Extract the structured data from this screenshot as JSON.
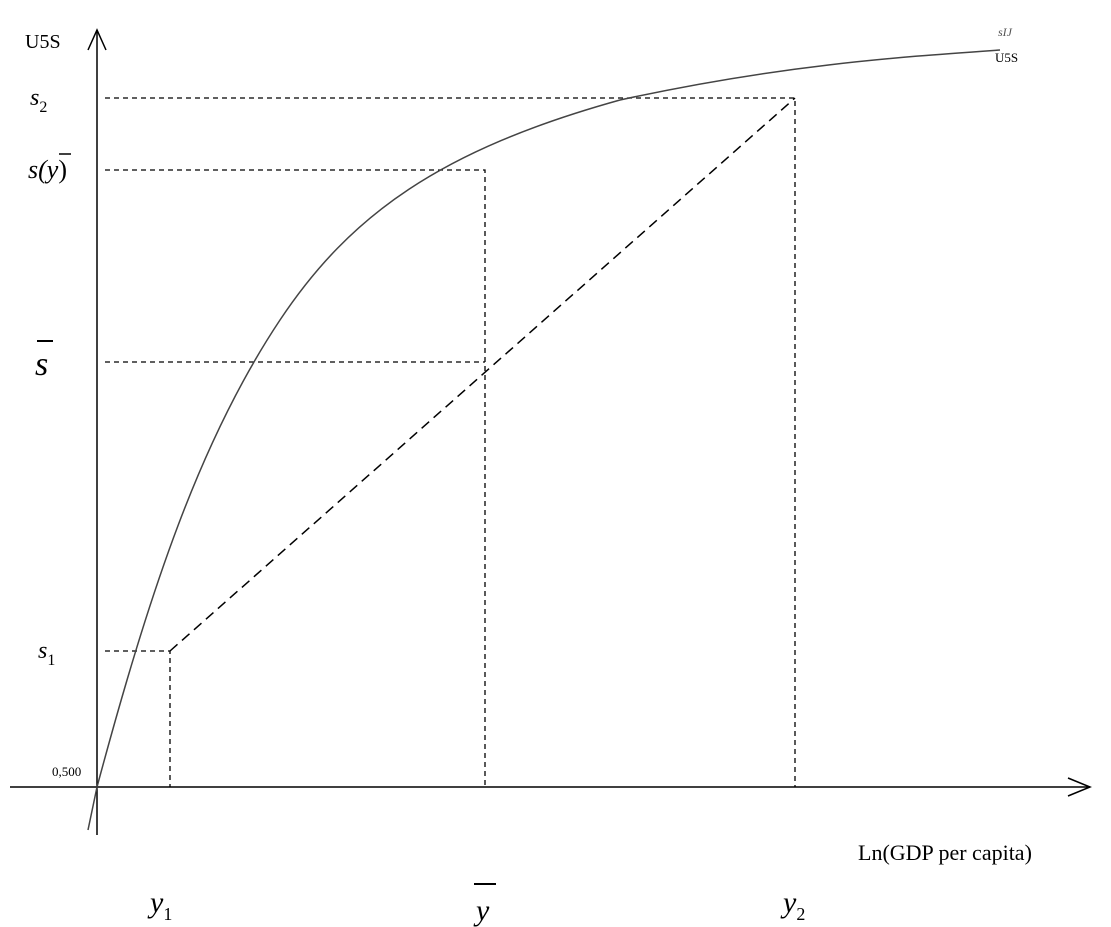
{
  "axes": {
    "y_label": "U5S",
    "x_label": "Ln(GDP per capita)",
    "origin_label": "0,500"
  },
  "curve_label": {
    "top": "sIJ",
    "bottom": "U5S"
  },
  "y_marks": [
    {
      "base": "s",
      "sub": "2"
    },
    {
      "open": "s(",
      "var": "y",
      "close": ")"
    },
    {
      "base": "s"
    },
    {
      "base": "s",
      "sub": "1"
    }
  ],
  "x_marks": [
    {
      "base": "y",
      "sub": "1"
    },
    {
      "base": "y"
    },
    {
      "base": "y",
      "sub": "2"
    }
  ]
}
